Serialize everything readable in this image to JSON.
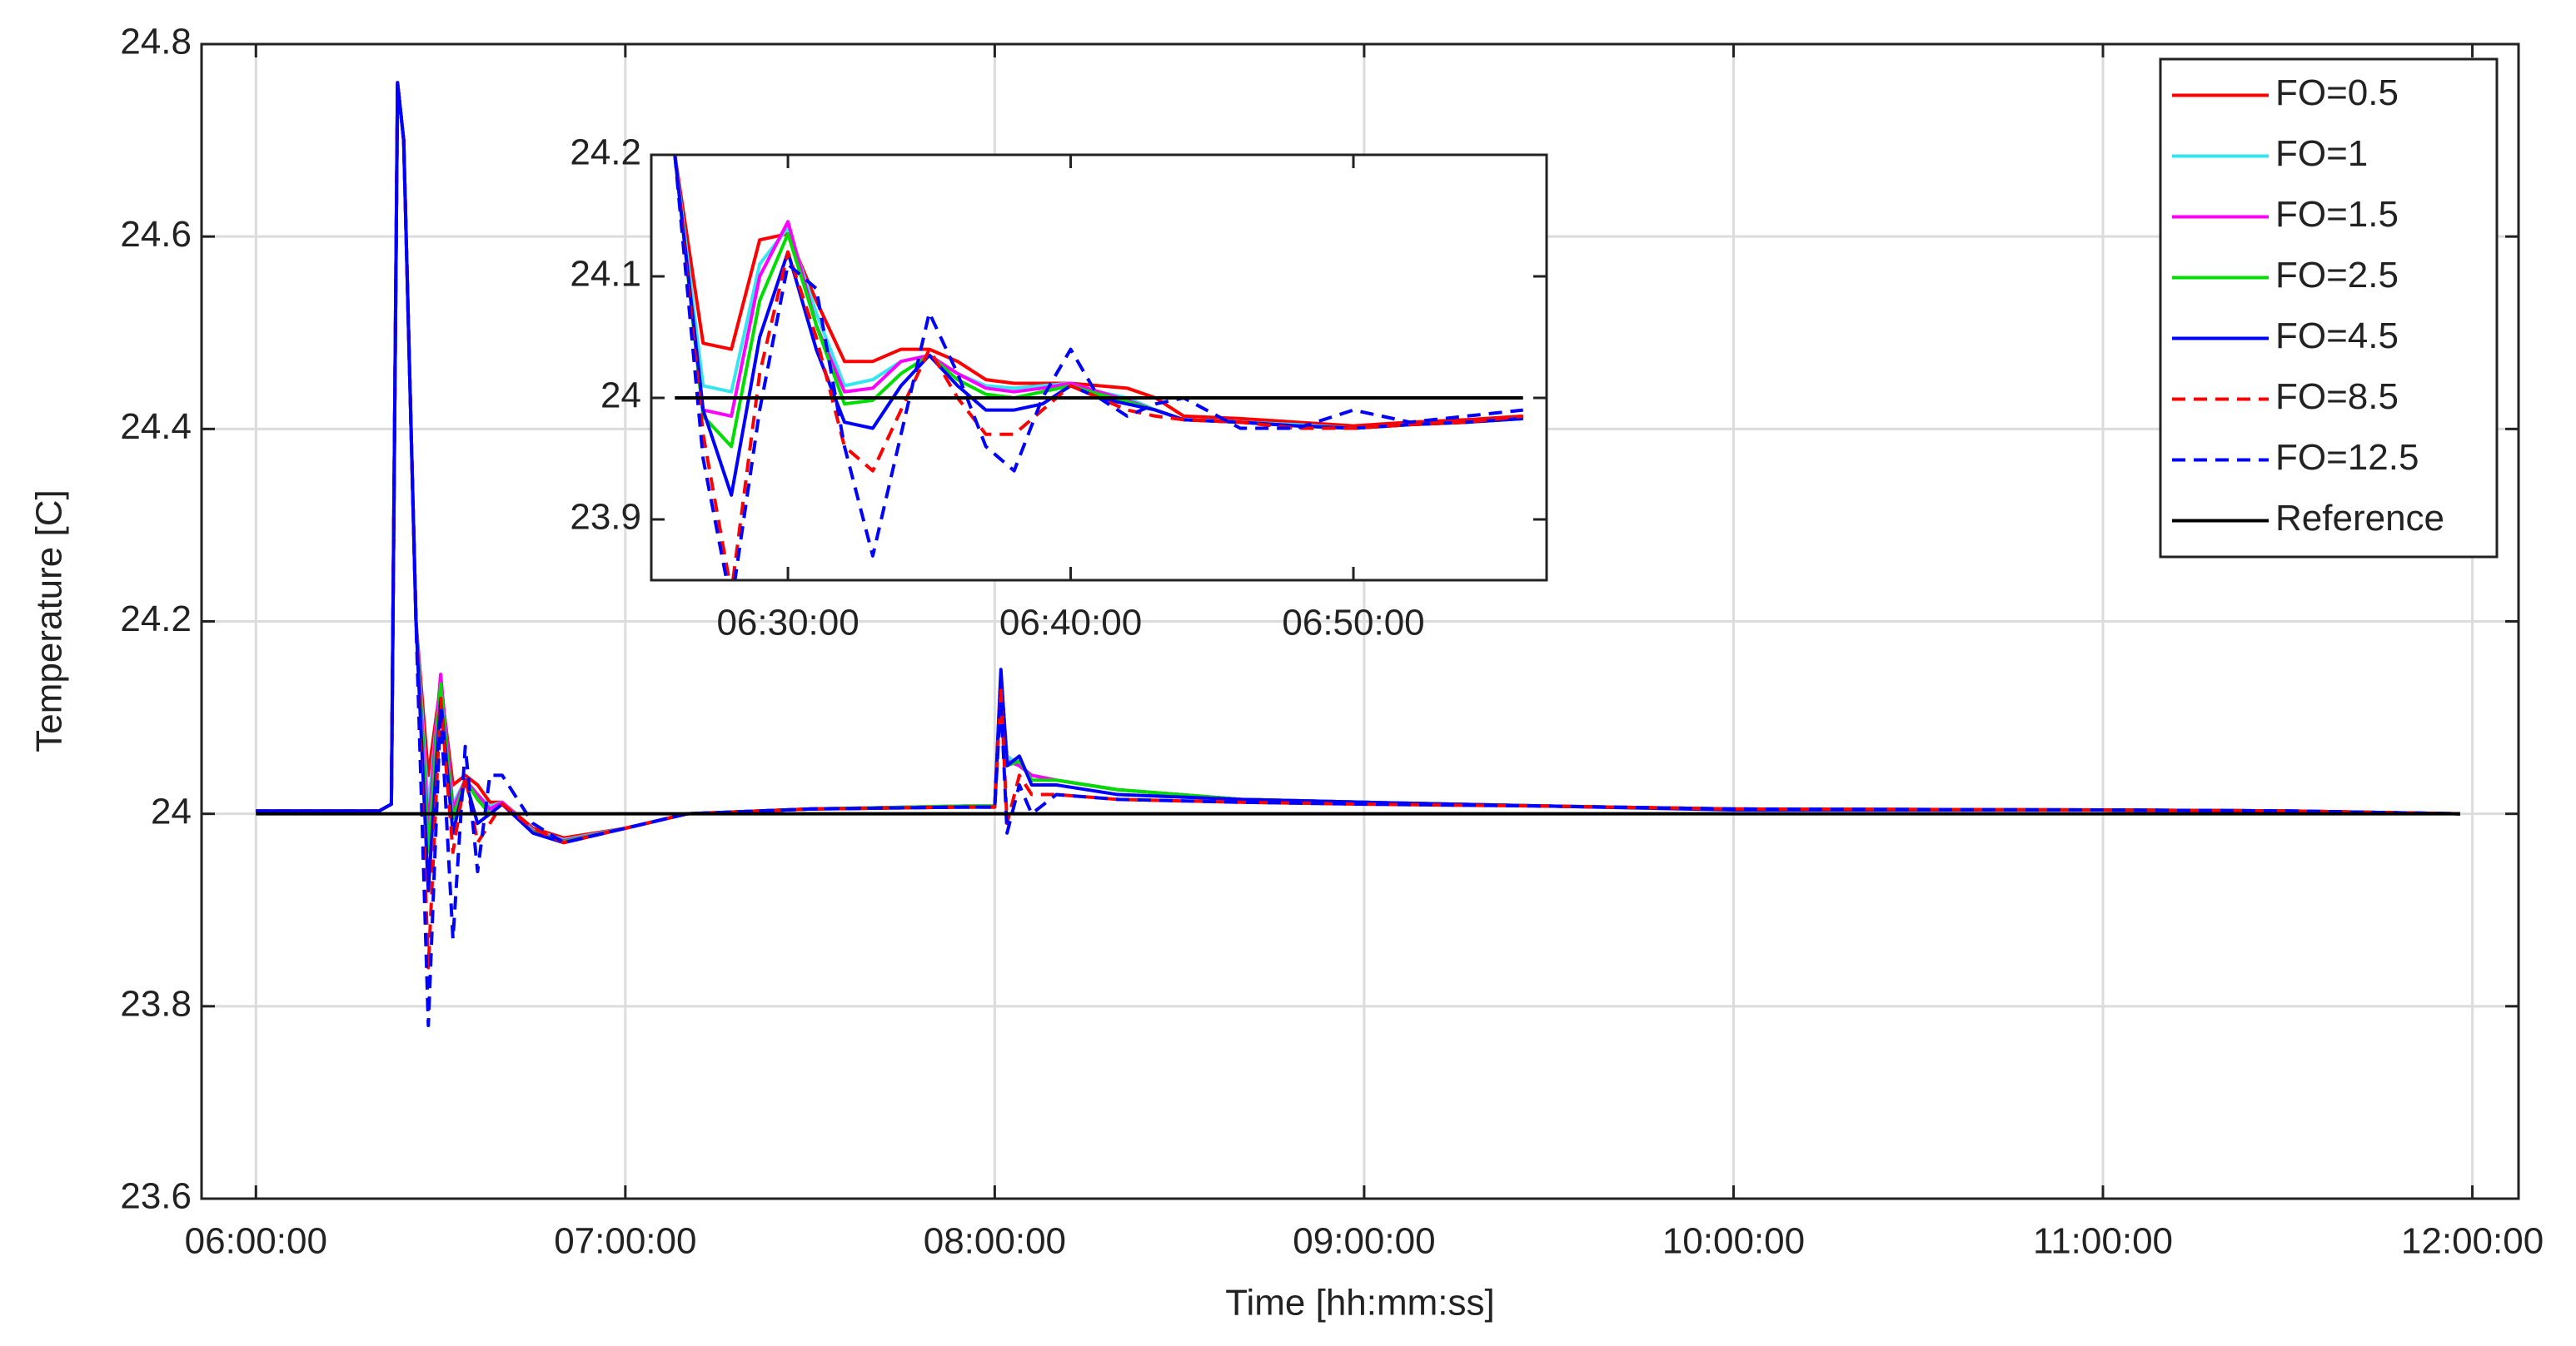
{
  "chart_data": [
    {
      "type": "line",
      "xlabel": "Time [hh:mm:ss]",
      "ylabel": "Temperature [C]",
      "x": [
        "06:00:00",
        "06:20:00",
        "06:22:00",
        "06:23:00",
        "06:24:00",
        "06:26:00",
        "06:28:00",
        "06:30:00",
        "06:32:00",
        "06:34:00",
        "06:36:00",
        "06:38:00",
        "06:40:00",
        "06:45:00",
        "06:50:00",
        "07:00:00",
        "07:10:00",
        "07:30:00",
        "07:55:00",
        "08:00:00",
        "08:01:00",
        "08:02:00",
        "08:04:00",
        "08:06:00",
        "08:10:00",
        "08:20:00",
        "08:40:00",
        "09:00:00",
        "09:30:00",
        "10:00:00",
        "11:00:00",
        "11:30:00",
        "11:58:00"
      ],
      "xlim": [
        "05:51:10",
        "12:07:30"
      ],
      "xticks": [
        "06:00:00",
        "07:00:00",
        "08:00:00",
        "09:00:00",
        "10:00:00",
        "11:00:00",
        "12:00:00"
      ],
      "ylim": [
        23.6,
        24.8
      ],
      "yticks": [
        23.6,
        23.8,
        24,
        24.2,
        24.4,
        24.6,
        24.8
      ],
      "grid": true,
      "legend": "upper right",
      "series": [
        {
          "name": "FO=0.5",
          "color": "#ff0000",
          "dashed": false,
          "values": [
            24.003,
            24.003,
            24.01,
            24.76,
            24.7,
            24.2,
            24.04,
            24.135,
            24.03,
            24.04,
            24.03,
            24.012,
            24.012,
            23.985,
            23.975,
            23.985,
            24.0,
            24.005,
            24.008,
            24.008,
            24.14,
            24.06,
            24.05,
            24.04,
            24.035,
            24.025,
            24.015,
            24.012,
            24.008,
            24.005,
            24.004,
            24.003,
            24.0
          ]
        },
        {
          "name": "FO=1",
          "color": "#33e6f0",
          "dashed": false,
          "values": [
            24.003,
            24.003,
            24.01,
            24.76,
            24.7,
            24.2,
            24.005,
            24.14,
            24.01,
            24.035,
            24.02,
            24.008,
            24.012,
            23.983,
            23.973,
            23.985,
            24.0,
            24.005,
            24.008,
            24.008,
            24.14,
            24.06,
            24.05,
            24.04,
            24.035,
            24.025,
            24.015,
            24.012,
            24.008,
            24.005,
            24.004,
            24.003,
            24.0
          ]
        },
        {
          "name": "FO=1.5",
          "color": "#ff00ff",
          "dashed": false,
          "values": [
            24.003,
            24.003,
            24.01,
            24.76,
            24.7,
            24.2,
            23.985,
            24.145,
            24.005,
            24.035,
            24.02,
            24.005,
            24.012,
            23.982,
            23.972,
            23.985,
            24.0,
            24.005,
            24.008,
            24.008,
            24.145,
            24.055,
            24.05,
            24.04,
            24.035,
            24.025,
            24.015,
            24.012,
            24.008,
            24.005,
            24.004,
            24.003,
            24.0
          ]
        },
        {
          "name": "FO=2.5",
          "color": "#00dd00",
          "dashed": false,
          "values": [
            24.003,
            24.003,
            24.01,
            24.76,
            24.7,
            24.2,
            23.96,
            24.135,
            23.995,
            24.035,
            24.015,
            24.0,
            24.01,
            23.981,
            23.971,
            23.985,
            24.0,
            24.005,
            24.008,
            24.008,
            24.145,
            24.05,
            24.055,
            24.035,
            24.035,
            24.025,
            24.015,
            24.012,
            24.008,
            24.005,
            24.004,
            24.003,
            24.0
          ]
        },
        {
          "name": "FO=4.5",
          "color": "#0000ff",
          "dashed": false,
          "values": [
            24.003,
            24.003,
            24.01,
            24.76,
            24.7,
            24.2,
            23.92,
            24.12,
            23.98,
            24.035,
            23.99,
            24.0,
            24.01,
            23.98,
            23.97,
            23.985,
            24.0,
            24.005,
            24.007,
            24.007,
            24.15,
            24.05,
            24.06,
            24.03,
            24.03,
            24.02,
            24.015,
            24.012,
            24.008,
            24.004,
            24.004,
            24.003,
            24.0
          ]
        },
        {
          "name": "FO=8.5",
          "color": "#ff0000",
          "dashed": true,
          "values": [
            24.003,
            24.003,
            24.01,
            24.76,
            24.7,
            24.2,
            23.84,
            24.12,
            23.96,
            24.04,
            23.97,
            23.99,
            24.01,
            23.985,
            23.97,
            23.985,
            24.0,
            24.005,
            24.007,
            24.007,
            24.13,
            23.99,
            24.04,
            24.02,
            24.02,
            24.015,
            24.012,
            24.01,
            24.008,
            24.005,
            24.004,
            24.003,
            24.0
          ]
        },
        {
          "name": "FO=12.5",
          "color": "#0000ff",
          "dashed": true,
          "values": [
            24.003,
            24.003,
            24.01,
            24.76,
            24.7,
            24.2,
            23.78,
            24.11,
            23.87,
            24.07,
            23.94,
            24.04,
            24.04,
            23.99,
            23.97,
            23.985,
            24.0,
            24.005,
            24.007,
            24.007,
            24.12,
            23.98,
            24.03,
            24.0,
            24.02,
            24.015,
            24.012,
            24.01,
            24.008,
            24.005,
            24.004,
            24.003,
            24.0
          ]
        },
        {
          "name": "Reference",
          "color": "#000000",
          "dashed": false,
          "values": [
            24,
            24,
            24,
            24,
            24,
            24,
            24,
            24,
            24,
            24,
            24,
            24,
            24,
            24,
            24,
            24,
            24,
            24,
            24,
            24,
            24,
            24,
            24,
            24,
            24,
            24,
            24,
            24,
            24,
            24,
            24,
            24,
            24
          ]
        }
      ]
    },
    {
      "type": "line",
      "x": [
        "06:26:00",
        "06:27:00",
        "06:28:00",
        "06:29:00",
        "06:30:00",
        "06:31:00",
        "06:32:00",
        "06:33:00",
        "06:34:00",
        "06:35:00",
        "06:36:00",
        "06:37:00",
        "06:38:00",
        "06:39:00",
        "06:40:00",
        "06:41:00",
        "06:42:00",
        "06:43:00",
        "06:44:00",
        "06:46:00",
        "06:48:00",
        "06:50:00",
        "06:52:00",
        "06:54:00",
        "06:56:00"
      ],
      "xlim": [
        "06:25:10",
        "06:56:50"
      ],
      "xticks": [
        "06:30:00",
        "06:40:00",
        "06:50:00"
      ],
      "ylim": [
        23.85,
        24.2
      ],
      "yticks": [
        23.9,
        24,
        24.1,
        24.2
      ],
      "grid": false,
      "series": [
        {
          "color": "#ff0000",
          "dashed": false,
          "values": [
            24.2,
            24.045,
            24.04,
            24.13,
            24.135,
            24.08,
            24.03,
            24.03,
            24.04,
            24.04,
            24.03,
            24.015,
            24.012,
            24.012,
            24.012,
            24.01,
            24.008,
            24.0,
            23.985,
            23.983,
            23.98,
            23.977,
            23.98,
            23.982,
            23.985
          ]
        },
        {
          "color": "#33e6f0",
          "dashed": false,
          "values": [
            24.2,
            24.01,
            24.005,
            24.11,
            24.14,
            24.07,
            24.01,
            24.015,
            24.03,
            24.035,
            24.02,
            24.01,
            24.008,
            24.01,
            24.012,
            24.005,
            24.0,
            23.99,
            23.982,
            23.98,
            23.978,
            23.975,
            23.978,
            23.98,
            23.983
          ]
        },
        {
          "color": "#ff00ff",
          "dashed": false,
          "values": [
            24.2,
            23.99,
            23.985,
            24.1,
            24.145,
            24.06,
            24.005,
            24.008,
            24.03,
            24.035,
            24.02,
            24.008,
            24.005,
            24.008,
            24.012,
            24.005,
            23.998,
            23.99,
            23.982,
            23.98,
            23.977,
            23.975,
            23.978,
            23.98,
            23.983
          ]
        },
        {
          "color": "#00dd00",
          "dashed": false,
          "values": [
            24.2,
            23.985,
            23.96,
            24.08,
            24.135,
            24.06,
            23.995,
            23.998,
            24.02,
            24.035,
            24.015,
            24.003,
            24.0,
            24.005,
            24.01,
            24.003,
            23.997,
            23.99,
            23.982,
            23.98,
            23.977,
            23.975,
            23.978,
            23.98,
            23.983
          ]
        },
        {
          "color": "#0000ff",
          "dashed": false,
          "values": [
            24.2,
            23.99,
            23.92,
            24.05,
            24.12,
            24.04,
            23.98,
            23.975,
            24.01,
            24.035,
            24.01,
            23.99,
            23.99,
            23.995,
            24.01,
            24.0,
            23.995,
            23.99,
            23.982,
            23.98,
            23.977,
            23.975,
            23.978,
            23.98,
            23.983
          ]
        },
        {
          "color": "#ff0000",
          "dashed": true,
          "values": [
            24.2,
            23.97,
            23.84,
            24.02,
            24.12,
            24.05,
            23.96,
            23.94,
            23.99,
            24.04,
            24.0,
            23.97,
            23.97,
            23.99,
            24.01,
            24.0,
            23.99,
            23.985,
            23.982,
            23.98,
            23.975,
            23.975,
            23.978,
            23.98,
            23.985
          ]
        },
        {
          "color": "#0000ff",
          "dashed": true,
          "values": [
            24.2,
            23.95,
            23.83,
            23.99,
            24.11,
            24.09,
            23.96,
            23.87,
            23.97,
            24.07,
            24.02,
            23.96,
            23.94,
            24.0,
            24.04,
            24.0,
            23.985,
            23.995,
            24.0,
            23.975,
            23.975,
            23.99,
            23.98,
            23.985,
            23.99
          ]
        },
        {
          "color": "#000000",
          "dashed": false,
          "values": [
            24,
            24,
            24,
            24,
            24,
            24,
            24,
            24,
            24,
            24,
            24,
            24,
            24,
            24,
            24,
            24,
            24,
            24,
            24,
            24,
            24,
            24,
            24,
            24,
            24
          ]
        }
      ]
    }
  ]
}
